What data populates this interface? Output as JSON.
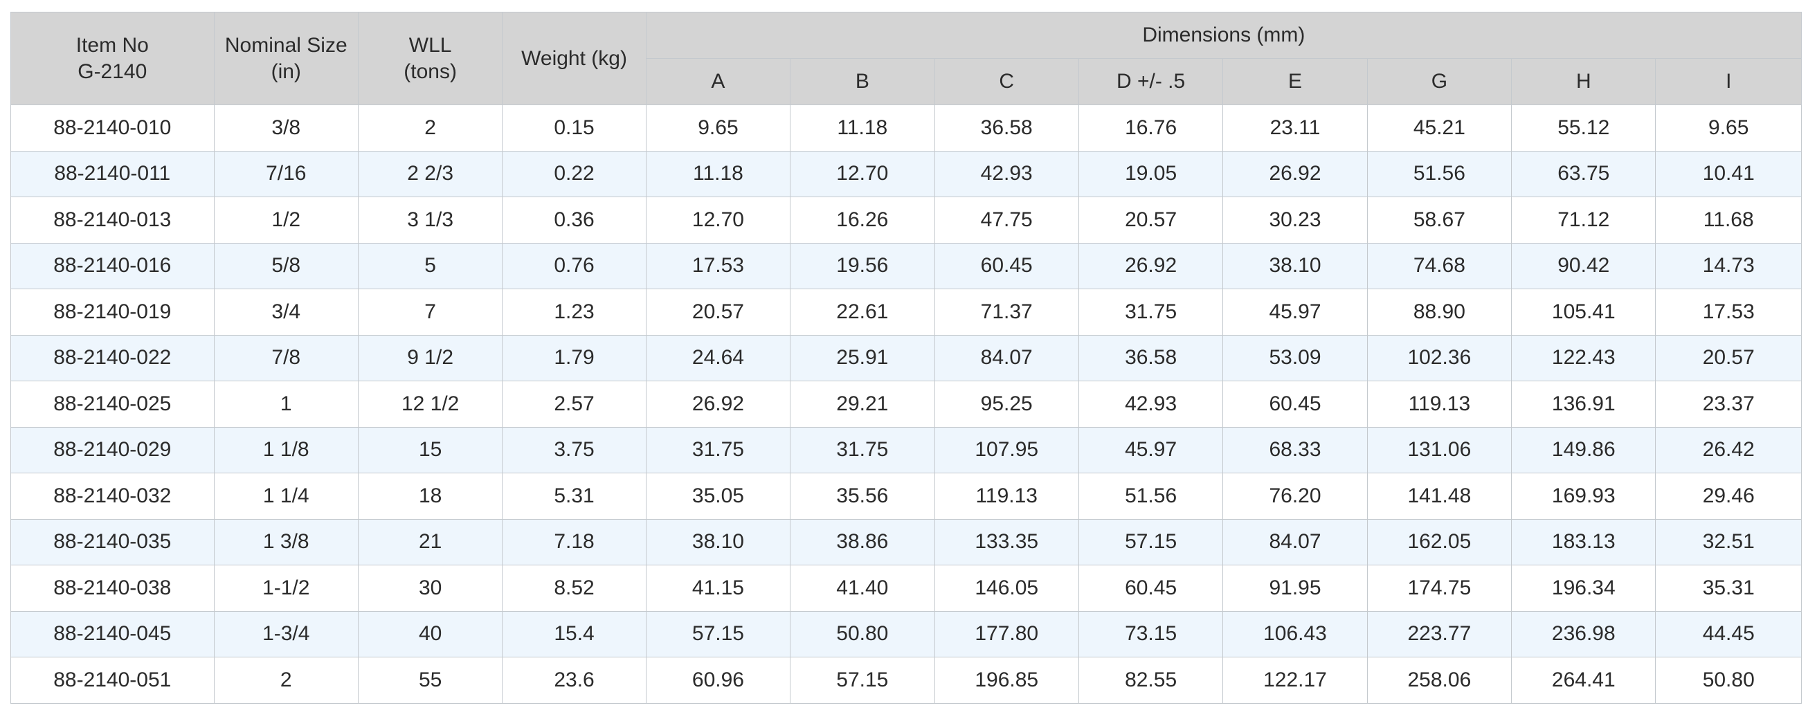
{
  "table": {
    "headers": {
      "item_no": [
        "Item No",
        "G-2140"
      ],
      "nominal_size": [
        "Nominal Size",
        "(in)"
      ],
      "wll": [
        "WLL",
        "(tons)"
      ],
      "weight": "Weight (kg)",
      "dimensions": "Dimensions (mm)",
      "dimension_columns": [
        "A",
        "B",
        "C",
        "D +/- .5",
        "E",
        "G",
        "H",
        "I"
      ]
    },
    "rows": [
      [
        "88-2140-010",
        "3/8",
        "2",
        "0.15",
        "9.65",
        "11.18",
        "36.58",
        "16.76",
        "23.11",
        "45.21",
        "55.12",
        "9.65"
      ],
      [
        "88-2140-011",
        "7/16",
        "2 2/3",
        "0.22",
        "11.18",
        "12.70",
        "42.93",
        "19.05",
        "26.92",
        "51.56",
        "63.75",
        "10.41"
      ],
      [
        "88-2140-013",
        "1/2",
        "3 1/3",
        "0.36",
        "12.70",
        "16.26",
        "47.75",
        "20.57",
        "30.23",
        "58.67",
        "71.12",
        "11.68"
      ],
      [
        "88-2140-016",
        "5/8",
        "5",
        "0.76",
        "17.53",
        "19.56",
        "60.45",
        "26.92",
        "38.10",
        "74.68",
        "90.42",
        "14.73"
      ],
      [
        "88-2140-019",
        "3/4",
        "7",
        "1.23",
        "20.57",
        "22.61",
        "71.37",
        "31.75",
        "45.97",
        "88.90",
        "105.41",
        "17.53"
      ],
      [
        "88-2140-022",
        "7/8",
        "9 1/2",
        "1.79",
        "24.64",
        "25.91",
        "84.07",
        "36.58",
        "53.09",
        "102.36",
        "122.43",
        "20.57"
      ],
      [
        "88-2140-025",
        "1",
        "12 1/2",
        "2.57",
        "26.92",
        "29.21",
        "95.25",
        "42.93",
        "60.45",
        "119.13",
        "136.91",
        "23.37"
      ],
      [
        "88-2140-029",
        "1 1/8",
        "15",
        "3.75",
        "31.75",
        "31.75",
        "107.95",
        "45.97",
        "68.33",
        "131.06",
        "149.86",
        "26.42"
      ],
      [
        "88-2140-032",
        "1 1/4",
        "18",
        "5.31",
        "35.05",
        "35.56",
        "119.13",
        "51.56",
        "76.20",
        "141.48",
        "169.93",
        "29.46"
      ],
      [
        "88-2140-035",
        "1 3/8",
        "21",
        "7.18",
        "38.10",
        "38.86",
        "133.35",
        "57.15",
        "84.07",
        "162.05",
        "183.13",
        "32.51"
      ],
      [
        "88-2140-038",
        "1-1/2",
        "30",
        "8.52",
        "41.15",
        "41.40",
        "146.05",
        "60.45",
        "91.95",
        "174.75",
        "196.34",
        "35.31"
      ],
      [
        "88-2140-045",
        "1-3/4",
        "40",
        "15.4",
        "57.15",
        "50.80",
        "177.80",
        "73.15",
        "106.43",
        "223.77",
        "236.98",
        "44.45"
      ],
      [
        "88-2140-051",
        "2",
        "55",
        "23.6",
        "60.96",
        "57.15",
        "196.85",
        "82.55",
        "122.17",
        "258.06",
        "264.41",
        "50.80"
      ]
    ]
  }
}
